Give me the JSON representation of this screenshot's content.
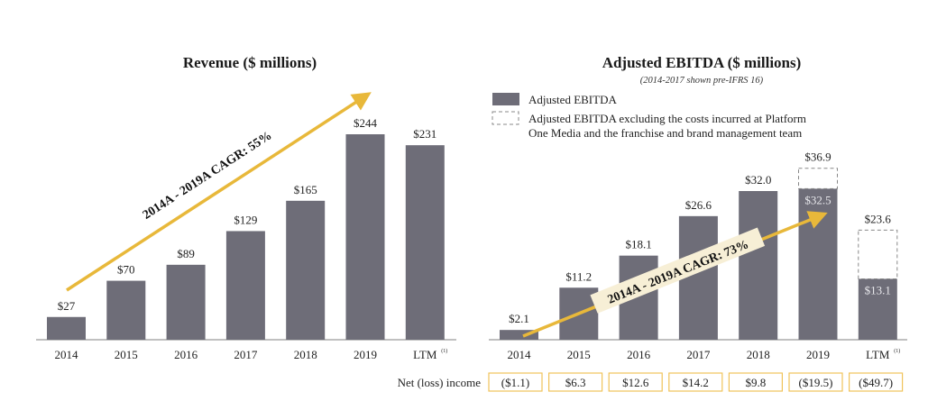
{
  "colors": {
    "bar": "#6e6d78",
    "arrow": "#e8b83a",
    "box_border": "#f0c35a",
    "axis": "#9a9a9a",
    "cagr_label_bg": "#f7efd6"
  },
  "chart_data": [
    {
      "type": "bar",
      "title": "Revenue ($ millions)",
      "categories": [
        "2014",
        "2015",
        "2016",
        "2017",
        "2018",
        "2019",
        "LTM"
      ],
      "category_superscripts": [
        "",
        "",
        "",
        "",
        "",
        "",
        "(1)"
      ],
      "values": [
        27,
        70,
        89,
        129,
        165,
        244,
        231
      ],
      "value_labels": [
        "$27",
        "$70",
        "$89",
        "$129",
        "$165",
        "$244",
        "$231"
      ],
      "ylim": [
        0,
        260
      ],
      "grid": false,
      "annotation": "2014A - 2019A CAGR: 55%"
    },
    {
      "type": "bar",
      "title": "Adjusted EBITDA ($ millions)",
      "subtitle": "(2014-2017 shown pre-IFRS 16)",
      "categories": [
        "2014",
        "2015",
        "2016",
        "2017",
        "2018",
        "2019",
        "LTM"
      ],
      "category_superscripts": [
        "",
        "",
        "",
        "",
        "",
        "",
        "(1)"
      ],
      "legend": [
        {
          "name": "Adjusted EBITDA",
          "style": "solid"
        },
        {
          "name": "Adjusted EBITDA  excluding the costs incurred at Platform One Media and the franchise and brand management team",
          "line1": "Adjusted EBITDA  excluding the costs incurred at Platform",
          "line2": "One Media and the franchise and brand management team",
          "style": "dashed"
        }
      ],
      "series": [
        {
          "name": "Adjusted EBITDA",
          "values": [
            2.1,
            11.2,
            18.1,
            26.6,
            32.0,
            32.5,
            13.1
          ],
          "value_labels": [
            "$2.1",
            "$11.2",
            "$18.1",
            "$26.6",
            "$32.0",
            "$32.5",
            "$13.1"
          ]
        },
        {
          "name": "Adjusted EBITDA excluding the costs incurred at Platform One Media and the franchise and brand management team",
          "values": [
            null,
            null,
            null,
            null,
            null,
            36.9,
            23.6
          ],
          "value_labels": [
            "",
            "",
            "",
            "",
            "",
            "$36.9",
            "$23.6"
          ]
        }
      ],
      "ylim": [
        0,
        40
      ],
      "grid": false,
      "annotation": "2014A - 2019A CAGR: 73%",
      "net_income": {
        "label": "Net (loss) income",
        "values": [
          "($1.1)",
          "$6.3",
          "$12.6",
          "$14.2",
          "$9.8",
          "($19.5)",
          "($49.7)"
        ]
      }
    }
  ]
}
